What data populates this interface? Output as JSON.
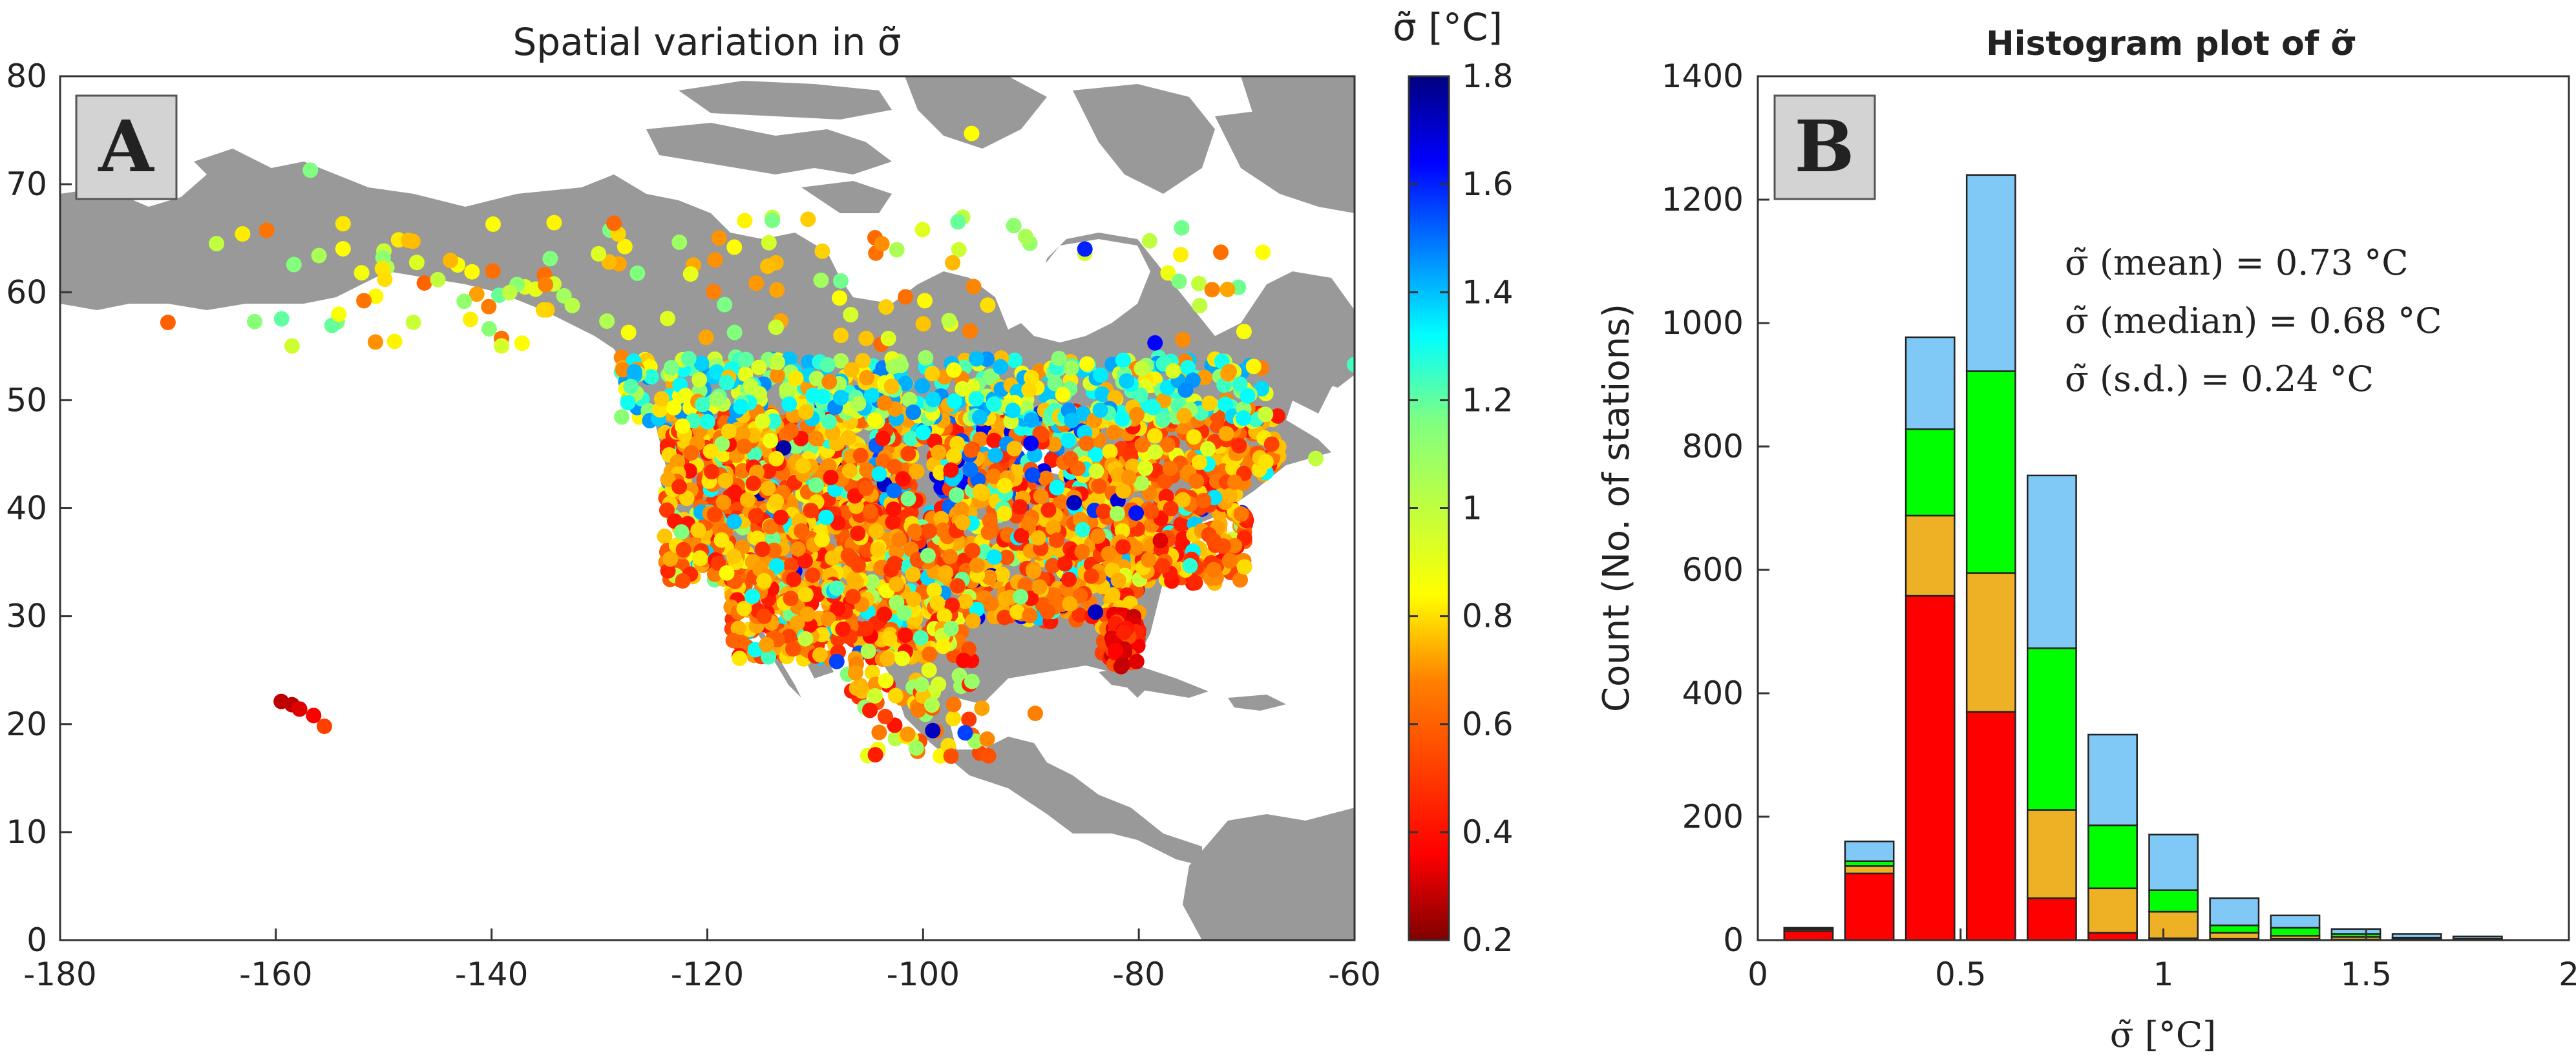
{
  "chart_data": [
    {
      "panel": "A",
      "type": "scatter",
      "title": "Spatial variation in σ̃",
      "xlim": [
        -180,
        -60
      ],
      "ylim": [
        0,
        80
      ],
      "xticks": [
        -180,
        -160,
        -140,
        -120,
        -100,
        -80,
        -60
      ],
      "yticks": [
        0,
        10,
        20,
        30,
        40,
        50,
        60,
        70,
        80
      ],
      "colorbar": {
        "label": "σ̃ [°C]",
        "min": 0.2,
        "max": 1.8,
        "ticks": [
          0.2,
          0.4,
          0.6,
          0.8,
          1,
          1.2,
          1.4,
          1.6,
          1.8
        ]
      },
      "background": "North America land map (gray)",
      "points_sample": [
        {
          "lon": -159.5,
          "lat": 22.1,
          "v": 0.3
        },
        {
          "lon": -158.5,
          "lat": 21.8,
          "v": 0.3
        },
        {
          "lon": -157.8,
          "lat": 21.4,
          "v": 0.35
        },
        {
          "lon": -156.5,
          "lat": 20.8,
          "v": 0.4
        },
        {
          "lon": -155.5,
          "lat": 19.8,
          "v": 0.5
        },
        {
          "lon": -170.0,
          "lat": 57.2,
          "v": 0.55
        },
        {
          "lon": -165.5,
          "lat": 64.5,
          "v": 0.9
        },
        {
          "lon": -156.8,
          "lat": 71.3,
          "v": 1.0
        },
        {
          "lon": -147.7,
          "lat": 64.8,
          "v": 0.7
        },
        {
          "lon": -149.9,
          "lat": 61.2,
          "v": 0.75
        },
        {
          "lon": -135.0,
          "lat": 60.7,
          "v": 0.6
        },
        {
          "lon": -114.4,
          "lat": 62.4,
          "v": 0.7
        },
        {
          "lon": -94.0,
          "lat": 58.8,
          "v": 0.75
        },
        {
          "lon": -95.5,
          "lat": 74.7,
          "v": 0.8
        },
        {
          "lon": -68.5,
          "lat": 63.7,
          "v": 0.8
        },
        {
          "lon": -85.0,
          "lat": 64.0,
          "v": 1.55
        },
        {
          "lon": -78.5,
          "lat": 55.3,
          "v": 1.6
        },
        {
          "lon": -60.0,
          "lat": 53.3,
          "v": 1.1
        },
        {
          "lon": -118.2,
          "lat": 34.0,
          "v": 0.8
        },
        {
          "lon": -112.0,
          "lat": 33.4,
          "v": 0.45
        },
        {
          "lon": -104.9,
          "lat": 39.7,
          "v": 0.55
        },
        {
          "lon": -96.8,
          "lat": 32.8,
          "v": 0.5
        },
        {
          "lon": -90.2,
          "lat": 38.6,
          "v": 0.6
        },
        {
          "lon": -87.6,
          "lat": 41.9,
          "v": 1.2
        },
        {
          "lon": -84.4,
          "lat": 33.7,
          "v": 0.5
        },
        {
          "lon": -80.2,
          "lat": 25.8,
          "v": 0.35
        },
        {
          "lon": -81.4,
          "lat": 28.5,
          "v": 0.45
        },
        {
          "lon": -74.0,
          "lat": 40.7,
          "v": 0.55
        },
        {
          "lon": -71.1,
          "lat": 42.4,
          "v": 0.6
        },
        {
          "lon": -93.3,
          "lat": 44.9,
          "v": 1.3
        },
        {
          "lon": -97.5,
          "lat": 35.5,
          "v": 0.6
        },
        {
          "lon": -106.5,
          "lat": 31.8,
          "v": 0.5
        },
        {
          "lon": -103.5,
          "lat": 20.7,
          "v": 0.5
        },
        {
          "lon": -99.1,
          "lat": 19.4,
          "v": 1.7
        },
        {
          "lon": -96.1,
          "lat": 19.2,
          "v": 1.5
        },
        {
          "lon": -89.6,
          "lat": 21.0,
          "v": 0.6
        },
        {
          "lon": -108.0,
          "lat": 25.8,
          "v": 1.5
        },
        {
          "lon": -110.9,
          "lat": 27.9,
          "v": 0.9
        },
        {
          "lon": -122.4,
          "lat": 37.8,
          "v": 1.0
        },
        {
          "lon": -122.3,
          "lat": 47.6,
          "v": 0.8
        },
        {
          "lon": -123.1,
          "lat": 49.3,
          "v": 0.8
        },
        {
          "lon": -113.5,
          "lat": 53.5,
          "v": 0.9
        },
        {
          "lon": -97.1,
          "lat": 49.9,
          "v": 1.2
        },
        {
          "lon": -79.4,
          "lat": 43.7,
          "v": 0.85
        },
        {
          "lon": -73.6,
          "lat": 45.5,
          "v": 0.85
        },
        {
          "lon": -63.6,
          "lat": 44.6,
          "v": 0.9
        },
        {
          "lon": -78.0,
          "lat": 37.0,
          "v": 0.35
        },
        {
          "lon": -86.0,
          "lat": 40.5,
          "v": 1.7
        },
        {
          "lon": -100.0,
          "lat": 47.0,
          "v": 1.2
        },
        {
          "lon": -90.0,
          "lat": 46.0,
          "v": 1.6
        }
      ]
    },
    {
      "panel": "B",
      "type": "bar",
      "stacked": true,
      "title": "Histogram plot of σ̃",
      "xlabel": "σ̃ [°C]",
      "ylabel": "Count (No. of stations)",
      "xlim": [
        0,
        2
      ],
      "ylim": [
        0,
        1400
      ],
      "xticks": [
        0,
        0.5,
        1,
        1.5,
        2
      ],
      "yticks": [
        0,
        200,
        400,
        600,
        800,
        1000,
        1200,
        1400
      ],
      "bin_centers": [
        0.125,
        0.275,
        0.425,
        0.575,
        0.725,
        0.875,
        1.025,
        1.175,
        1.325,
        1.475,
        1.625,
        1.775
      ],
      "series": [
        {
          "color": "#ff0000",
          "values": [
            15,
            108,
            558,
            370,
            68,
            12,
            3,
            2,
            2,
            1,
            1,
            0
          ]
        },
        {
          "color": "#eeb025",
          "values": [
            3,
            12,
            130,
            225,
            143,
            72,
            43,
            10,
            5,
            4,
            1,
            1
          ]
        },
        {
          "color": "#00ff00",
          "values": [
            0,
            8,
            140,
            327,
            262,
            102,
            35,
            12,
            13,
            5,
            2,
            1
          ]
        },
        {
          "color": "#80c8f5",
          "values": [
            2,
            32,
            149,
            318,
            280,
            147,
            90,
            44,
            20,
            8,
            6,
            4
          ]
        }
      ],
      "totals": [
        20,
        160,
        977,
        1240,
        753,
        333,
        171,
        68,
        40,
        18,
        10,
        6
      ],
      "annotations": [
        "σ̃ (mean) =  0.73 °C",
        "σ̃ (median) =  0.68 °C",
        "σ̃ (s.d.) =  0.24 °C"
      ]
    }
  ],
  "panel_labels": {
    "a": "A",
    "b": "B"
  }
}
